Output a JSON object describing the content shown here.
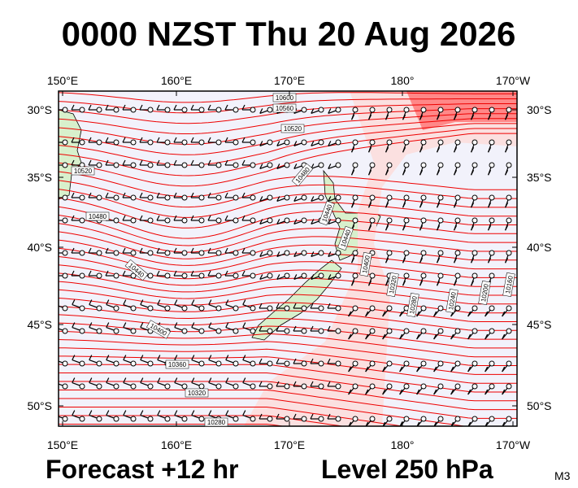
{
  "header": {
    "title": "0000 NZST Thu 20 Aug 2026"
  },
  "map": {
    "lon_labels": [
      "150°E",
      "160°E",
      "170°E",
      "180°",
      "170°W"
    ],
    "lat_labels": [
      "30°S",
      "35°S",
      "40°S",
      "45°S",
      "50°S"
    ],
    "contour_labels": [
      "10600",
      "10560",
      "10520",
      "10520",
      "10480",
      "10480",
      "10440",
      "10440",
      "10440",
      "10400",
      "10360",
      "10320",
      "10280",
      "10320",
      "10280",
      "10240",
      "10200",
      "10160",
      "10400"
    ]
  },
  "footer": {
    "forecast": "Forecast +12 hr",
    "level": "Level 250 hPa",
    "code": "M3"
  }
}
